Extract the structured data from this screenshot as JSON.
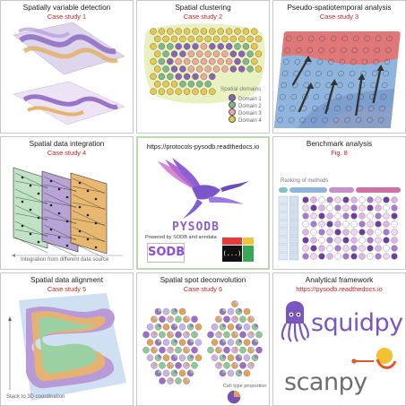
{
  "panels": [
    {
      "title": "Spatially variable detection",
      "subtitle": "Case study 1"
    },
    {
      "title": "Spatial clustering",
      "subtitle": "Case study 2"
    },
    {
      "title": "Pseudo-spatiotemporal analysis",
      "subtitle": "Case study 3"
    },
    {
      "title": "Spatial data integration",
      "subtitle": "Case study 4"
    },
    {
      "title": "https://protocols-pysodb.readthedocs.io",
      "subtitle": ""
    },
    {
      "title": "Benchmark analysis",
      "subtitle": "Fig. 8"
    },
    {
      "title": "Spatial data alignment",
      "subtitle": "Case study 5"
    },
    {
      "title": "Spatial spot deconvolution",
      "subtitle": "Case study 6"
    },
    {
      "title": "Analytical framework",
      "subtitle": "https://pysodb.readthedocs.io"
    }
  ],
  "clustering": {
    "legend_title": "Spatial domains",
    "domains": [
      {
        "label": "Domain 1",
        "color": "#8a63b8"
      },
      {
        "label": "Domain 2",
        "color": "#7fb98a"
      },
      {
        "label": "Domain 3",
        "color": "#f0a7a0"
      },
      {
        "label": "Domain 4",
        "color": "#e8c84c"
      }
    ]
  },
  "integration": {
    "caption": "Integration from different data source"
  },
  "benchmark": {
    "caption": "Ranking of methods"
  },
  "alignment": {
    "caption": "Stack to 3D coordination"
  },
  "deconvolution": {
    "caption": "Cell type proportion"
  },
  "center": {
    "logo_text": "PYSODB",
    "powered": "Powered by SODB and anndata",
    "sodb_text": "SODB",
    "ellipsis": "(...)"
  },
  "framework": {
    "squidpy": "squidpy",
    "scanpy": "scanpy"
  },
  "colors": {
    "purple": "#9a6fc4",
    "orange": "#e0a35a",
    "green": "#8fc79a",
    "pink": "#e88f86",
    "blue": "#7fa8d8",
    "red_text": "#d21f1f"
  }
}
